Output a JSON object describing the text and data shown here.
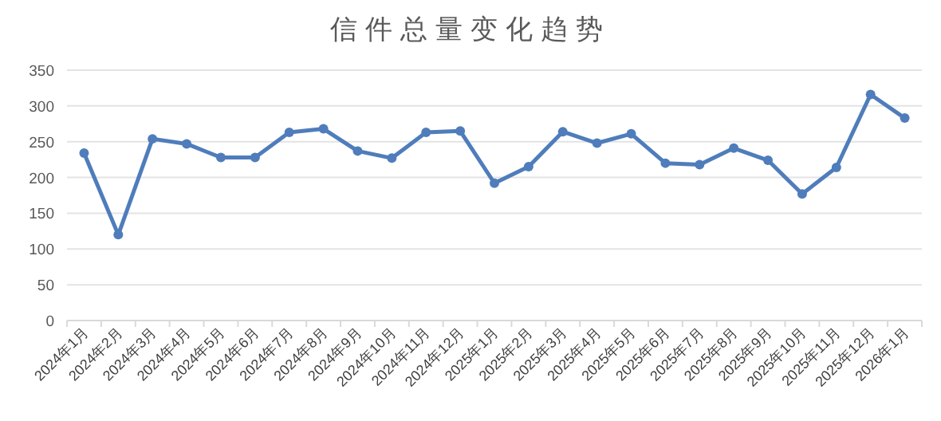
{
  "chart_data": {
    "type": "line",
    "title": "信件总量变化趋势",
    "categories": [
      "2024年1月",
      "2024年2月",
      "2024年3月",
      "2024年4月",
      "2024年5月",
      "2024年6月",
      "2024年7月",
      "2024年8月",
      "2024年9月",
      "2024年10月",
      "2024年11月",
      "2024年12月",
      "2025年1月",
      "2025年2月",
      "2025年3月",
      "2025年4月",
      "2025年5月",
      "2025年6月",
      "2025年7月",
      "2025年8月",
      "2025年9月",
      "2025年10月",
      "2025年11月",
      "2025年12月",
      "2026年1月"
    ],
    "series": [
      {
        "color": "#4f7dbb",
        "values": [
          234,
          120,
          254,
          247,
          228,
          228,
          263,
          268,
          237,
          227,
          263,
          265,
          192,
          215,
          264,
          248,
          261,
          220,
          218,
          241,
          224,
          177,
          214,
          316,
          283
        ]
      }
    ],
    "ylim": [
      0,
      350
    ],
    "yticks": [
      0,
      50,
      100,
      150,
      200,
      250,
      300,
      350
    ],
    "grid": "y",
    "marker": "circle",
    "line_style": "solid"
  }
}
